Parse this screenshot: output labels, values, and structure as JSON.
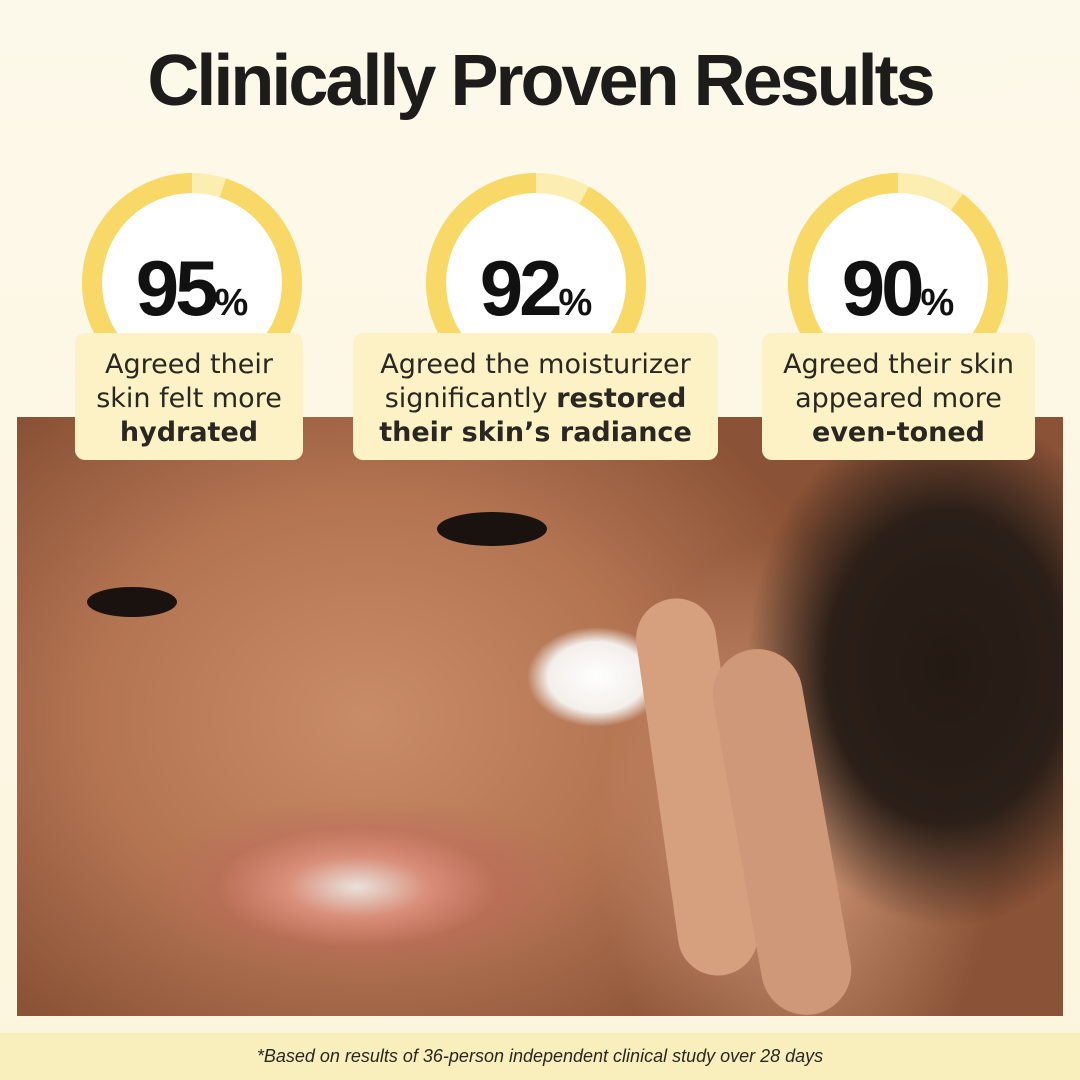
{
  "title": "Clinically Proven Results",
  "colors": {
    "ring": "#f8d866",
    "ring_remainder": "#fbeeb0",
    "card": "#fcf2c6",
    "footer": "#f9efbd"
  },
  "stats": [
    {
      "value": 95,
      "number": "95",
      "unit": "%",
      "line1": "Agreed their",
      "line2": "skin felt more",
      "bold": "hydrated"
    },
    {
      "value": 92,
      "number": "92",
      "unit": "%",
      "line1": "Agreed the moisturizer",
      "line2": "significantly",
      "bold2": "restored",
      "bold": "their skin’s radiance"
    },
    {
      "value": 90,
      "number": "90",
      "unit": "%",
      "line1": "Agreed their skin",
      "line2": "appeared more",
      "bold": "even-toned"
    }
  ],
  "footer": "*Based on results of 36-person independent clinical study over 28 days"
}
